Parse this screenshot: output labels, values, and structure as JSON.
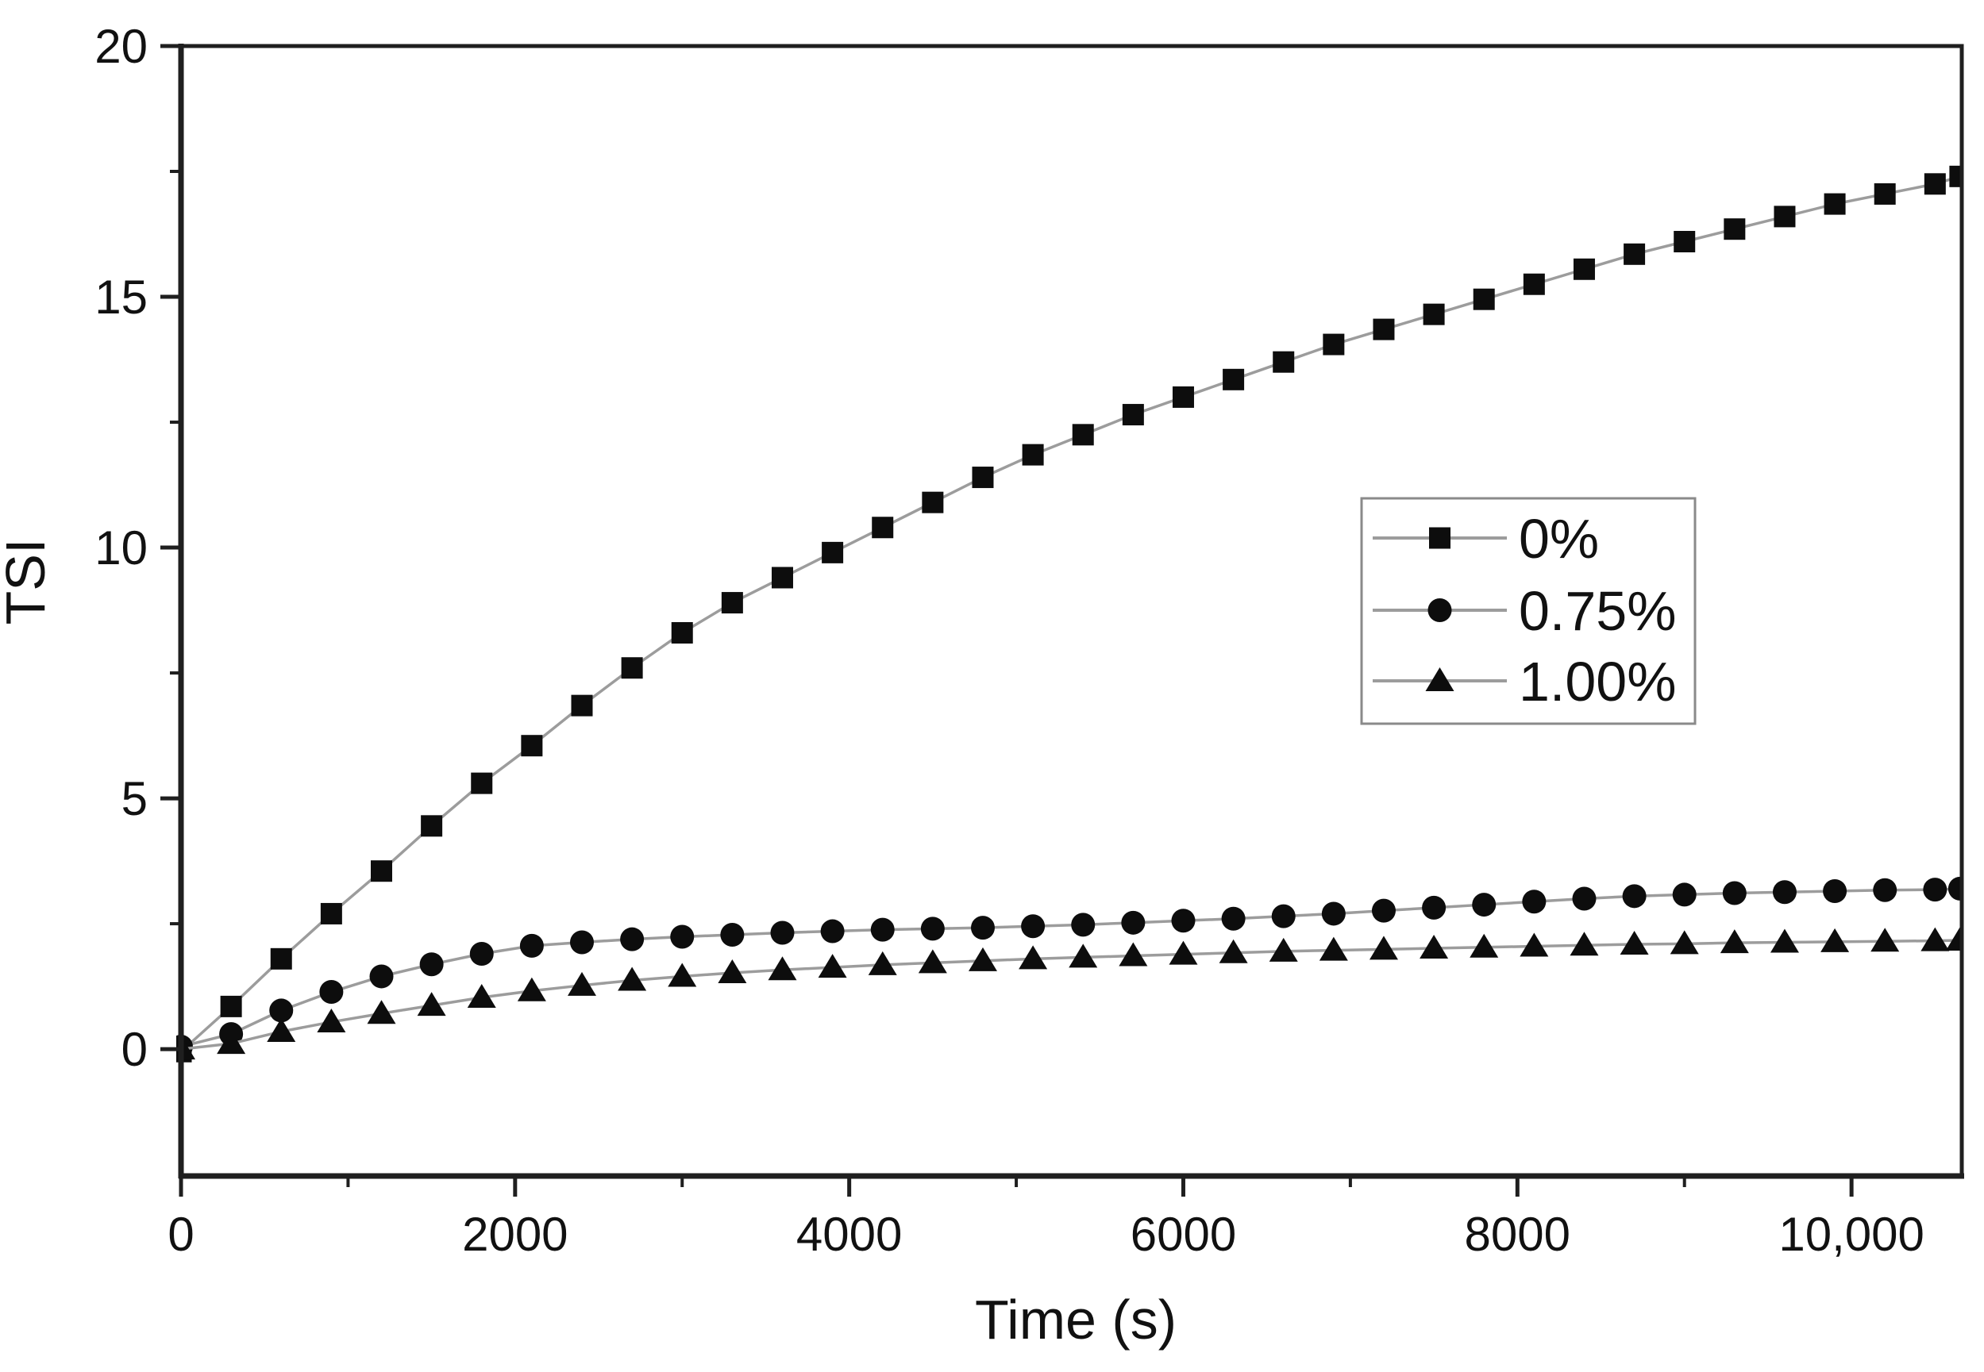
{
  "figure": {
    "background": "#ffffff",
    "description": "Scatter-line plot of Turbiscan stability index versus time for three concentrations"
  },
  "chart_data": {
    "type": "line",
    "title": "",
    "xlabel": "Time (s)",
    "ylabel": "TSI",
    "xlim": [
      0,
      10660
    ],
    "ylim": [
      -2.53,
      20
    ],
    "grid": false,
    "frame": true,
    "legend": {
      "position": "inside-upper-right",
      "border": true
    },
    "colors": {
      "marker": "#0d0d0d",
      "line": "#9c9c9c",
      "axis": "#1f1f1f",
      "tick_text": "#111111",
      "legend_border": "#8a8a8a",
      "background": "#ffffff"
    },
    "x_ticks": {
      "major": [
        {
          "value": 0,
          "label": "0"
        },
        {
          "value": 2000,
          "label": "2000"
        },
        {
          "value": 4000,
          "label": "4000"
        },
        {
          "value": 6000,
          "label": "6000"
        },
        {
          "value": 8000,
          "label": "8000"
        },
        {
          "value": 10000,
          "label": "10,000"
        }
      ],
      "minor": [
        1000,
        3000,
        5000,
        7000,
        9000
      ]
    },
    "y_ticks": {
      "major": [
        {
          "value": 0,
          "label": "0"
        },
        {
          "value": 5,
          "label": "5"
        },
        {
          "value": 10,
          "label": "10"
        },
        {
          "value": 15,
          "label": "15"
        },
        {
          "value": 20,
          "label": "20"
        }
      ],
      "minor": [
        2.5,
        7.5,
        12.5,
        17.5
      ]
    },
    "x": [
      0,
      300,
      600,
      900,
      1200,
      1500,
      1800,
      2100,
      2400,
      2700,
      3000,
      3300,
      3600,
      3900,
      4200,
      4500,
      4800,
      5100,
      5400,
      5700,
      6000,
      6300,
      6600,
      6900,
      7200,
      7500,
      7800,
      8100,
      8400,
      8700,
      9000,
      9300,
      9600,
      9900,
      10200,
      10500,
      10650
    ],
    "series": [
      {
        "name": "0%",
        "marker": "square",
        "values": [
          -0.05,
          0.85,
          1.8,
          2.7,
          3.55,
          4.45,
          5.3,
          6.05,
          6.85,
          7.6,
          8.3,
          8.9,
          9.4,
          9.9,
          10.4,
          10.9,
          11.4,
          11.85,
          12.25,
          12.65,
          13.0,
          13.35,
          13.7,
          14.05,
          14.35,
          14.65,
          14.95,
          15.25,
          15.55,
          15.85,
          16.1,
          16.35,
          16.6,
          16.85,
          17.05,
          17.25,
          17.4
        ]
      },
      {
        "name": "0.75%",
        "marker": "circle",
        "values": [
          0.05,
          0.3,
          0.77,
          1.14,
          1.45,
          1.69,
          1.9,
          2.06,
          2.13,
          2.19,
          2.24,
          2.28,
          2.32,
          2.35,
          2.38,
          2.4,
          2.42,
          2.45,
          2.48,
          2.52,
          2.56,
          2.6,
          2.65,
          2.7,
          2.76,
          2.82,
          2.88,
          2.94,
          3.0,
          3.05,
          3.08,
          3.11,
          3.13,
          3.15,
          3.17,
          3.18,
          3.2
        ]
      },
      {
        "name": "1.00%",
        "marker": "triangle",
        "values": [
          0.0,
          0.11,
          0.35,
          0.54,
          0.71,
          0.87,
          1.03,
          1.16,
          1.27,
          1.37,
          1.45,
          1.52,
          1.58,
          1.63,
          1.68,
          1.72,
          1.76,
          1.8,
          1.83,
          1.86,
          1.89,
          1.92,
          1.95,
          1.97,
          1.99,
          2.01,
          2.03,
          2.05,
          2.07,
          2.09,
          2.1,
          2.12,
          2.13,
          2.14,
          2.15,
          2.16,
          2.17
        ]
      }
    ]
  }
}
